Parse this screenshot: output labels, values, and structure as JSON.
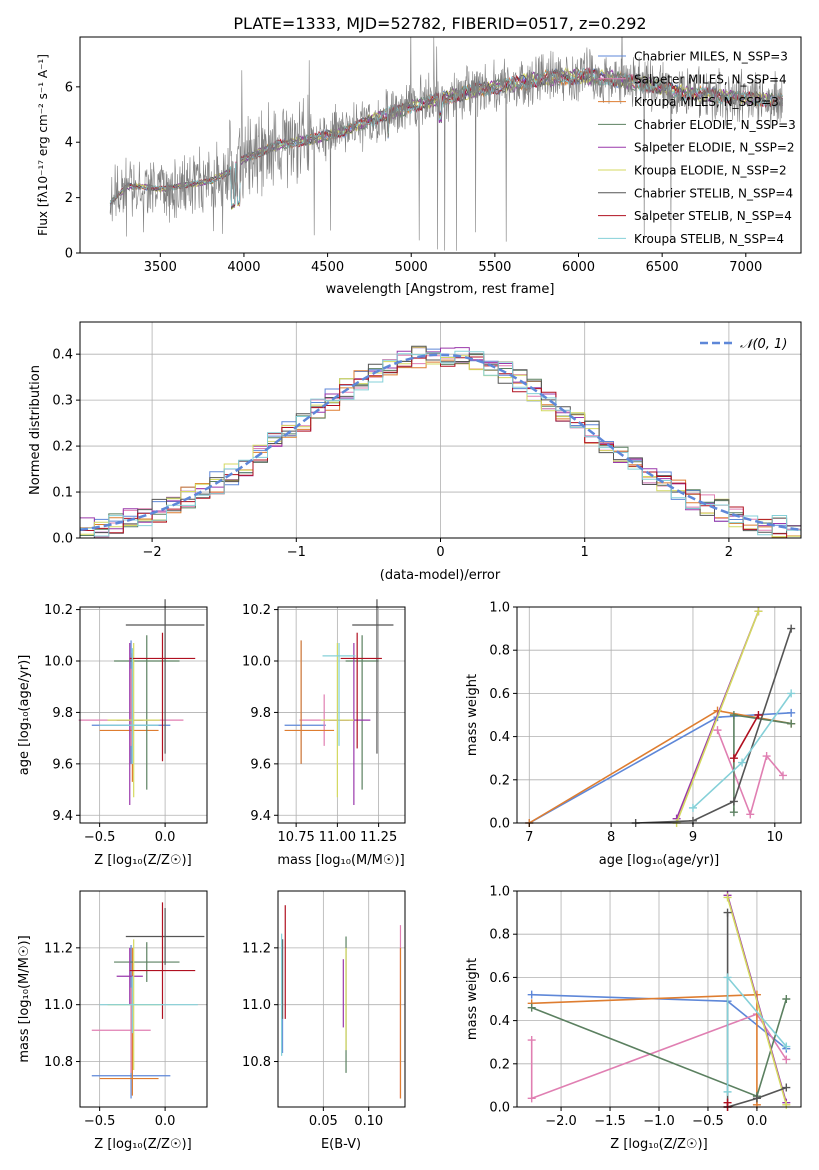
{
  "title": "PLATE=1333, MJD=52782, FIBERID=0517, z=0.292",
  "colors": {
    "palette": [
      "#5e87d8",
      "#e07fb2",
      "#de7d30",
      "#5b8060",
      "#9a38ab",
      "#d4d960",
      "#555555",
      "#b01020",
      "#85d0d8"
    ],
    "data": "#7f7f7f",
    "normal": "#5e87d8",
    "grid": "#b0b0b0"
  },
  "chart_data": [
    {
      "type": "line",
      "id": "spectrum",
      "xlabel": "wavelength [Angstrom, rest frame]",
      "ylabel": "Flux [fλ10⁻¹⁷ erg cm⁻² s⁻¹ A⁻¹]",
      "xlim": [
        3020,
        7330
      ],
      "ylim": [
        0,
        7.8
      ],
      "xticks": [
        3500,
        4000,
        4500,
        5000,
        5500,
        6000,
        6500,
        7000
      ],
      "yticks": [
        0,
        2,
        4,
        6
      ],
      "grid": false,
      "legend_position": "right",
      "series": [
        {
          "name": "Chabrier MILES, N_SSP=3"
        },
        {
          "name": "Salpeter MILES, N_SSP=4"
        },
        {
          "name": "Kroupa MILES, N_SSP=3"
        },
        {
          "name": "Chabrier ELODIE, N_SSP=3"
        },
        {
          "name": "Salpeter ELODIE, N_SSP=2"
        },
        {
          "name": "Kroupa ELODIE, N_SSP=2"
        },
        {
          "name": "Chabrier STELIB, N_SSP=4"
        },
        {
          "name": "Salpeter STELIB, N_SSP=4"
        },
        {
          "name": "Kroupa STELIB, N_SSP=4"
        }
      ],
      "continuum": {
        "x": [
          3200,
          3300,
          3400,
          3500,
          3600,
          3700,
          3800,
          3900,
          4000,
          4200,
          4400,
          4600,
          4800,
          5000,
          5200,
          5400,
          5600,
          5800,
          6000,
          6200,
          6400,
          6600,
          6800,
          7000,
          7200
        ],
        "y": [
          1.8,
          2.4,
          2.4,
          2.3,
          2.4,
          2.5,
          2.6,
          2.9,
          3.4,
          3.9,
          4.1,
          4.4,
          4.9,
          5.3,
          5.6,
          5.9,
          6.1,
          6.3,
          6.4,
          6.3,
          6.1,
          5.8,
          5.7,
          5.6,
          5.5
        ]
      }
    },
    {
      "type": "line",
      "id": "residuals",
      "xlabel": "(data-model)/error",
      "ylabel": "Normed distribution",
      "xlim": [
        -2.5,
        2.5
      ],
      "ylim": [
        0,
        0.47
      ],
      "xticks": [
        -2,
        -1,
        0,
        1,
        2
      ],
      "yticks": [
        0.0,
        0.1,
        0.2,
        0.3,
        0.4
      ],
      "grid": true,
      "legend_position": "top-right",
      "legend": [
        "𝒩(0, 1)"
      ],
      "bin_width": 0.1
    },
    {
      "type": "scatter",
      "id": "age-vs-Z",
      "xlabel": "Z [log₁₀(Z/Z☉)]",
      "ylabel": "age  [log₁₀(age/yr)]",
      "xlim": [
        -0.65,
        0.32
      ],
      "ylim": [
        9.37,
        10.21
      ],
      "xticks": [
        -0.5,
        0.0
      ],
      "yticks": [
        9.4,
        9.6,
        9.8,
        10.0,
        10.2
      ],
      "grid": true,
      "series": [
        {
          "x": -0.26,
          "xerr": [
            0.3,
            0.3
          ],
          "y": 9.75,
          "yerr": [
            0.15,
            0.33
          ]
        },
        {
          "x": -0.26,
          "xerr": [
            0.4,
            0.4
          ],
          "y": 9.77,
          "yerr": [
            0.1,
            0.2
          ]
        },
        {
          "x": -0.25,
          "xerr": [
            0.25,
            0.2
          ],
          "y": 9.73,
          "yerr": [
            0.2,
            0.3
          ]
        },
        {
          "x": -0.14,
          "xerr": [
            0.25,
            0.25
          ],
          "y": 10.0,
          "yerr": [
            0.5,
            0.1
          ]
        },
        {
          "x": -0.27,
          "xerr": [
            0.1,
            0.1
          ],
          "y": 9.77,
          "yerr": [
            0.33,
            0.3
          ]
        },
        {
          "x": -0.24,
          "xerr": [
            0.2,
            0.2
          ],
          "y": 9.77,
          "yerr": [
            0.3,
            0.3
          ]
        },
        {
          "x": 0.0,
          "xerr": [
            0.3,
            0.3
          ],
          "y": 10.14,
          "yerr": [
            0.5,
            0.1
          ]
        },
        {
          "x": -0.02,
          "xerr": [
            0.25,
            0.25
          ],
          "y": 10.01,
          "yerr": [
            0.4,
            0.1
          ]
        },
        {
          "x": -0.25,
          "xerr": [
            0.25,
            0.2
          ],
          "y": 9.75,
          "yerr": [
            0.15,
            0.3
          ]
        }
      ]
    },
    {
      "type": "scatter",
      "id": "age-vs-mass",
      "xlabel": "mass [log₁₀(M/M☉)]",
      "ylabel": "",
      "xlim": [
        10.64,
        11.41
      ],
      "ylim": [
        9.37,
        10.21
      ],
      "xticks": [
        10.75,
        11.0,
        11.25
      ],
      "yticks": [
        9.4,
        9.6,
        9.8,
        10.0,
        10.2
      ],
      "grid": true,
      "series": [
        {
          "x": 10.78,
          "xerr": [
            0.1,
            0.15
          ],
          "y": 9.75,
          "yerr": [
            0.15,
            0.33
          ]
        },
        {
          "x": 10.92,
          "xerr": [
            0.15,
            0.15
          ],
          "y": 9.77,
          "yerr": [
            0.1,
            0.1
          ]
        },
        {
          "x": 10.78,
          "xerr": [
            0.1,
            0.2
          ],
          "y": 9.73,
          "yerr": [
            0.13,
            0.35
          ]
        },
        {
          "x": 11.15,
          "xerr": [
            0.1,
            0.1
          ],
          "y": 10.0,
          "yerr": [
            0.5,
            0.1
          ]
        },
        {
          "x": 11.1,
          "xerr": [
            0.15,
            0.1
          ],
          "y": 9.77,
          "yerr": [
            0.33,
            0.3
          ]
        },
        {
          "x": 11.0,
          "xerr": [
            0.1,
            0.1
          ],
          "y": 9.77,
          "yerr": [
            0.3,
            0.3
          ]
        },
        {
          "x": 11.24,
          "xerr": [
            0.15,
            0.1
          ],
          "y": 10.14,
          "yerr": [
            0.5,
            0.1
          ]
        },
        {
          "x": 11.12,
          "xerr": [
            0.1,
            0.15
          ],
          "y": 10.01,
          "yerr": [
            0.35,
            0.1
          ]
        },
        {
          "x": 11.01,
          "xerr": [
            0.1,
            0.1
          ],
          "y": 10.02,
          "yerr": [
            0.35,
            0.05
          ]
        }
      ]
    },
    {
      "type": "line",
      "id": "mass-weight-vs-age",
      "xlabel": "age  [log₁₀(age/yr)]",
      "ylabel": "mass weight",
      "xlim": [
        6.85,
        10.32
      ],
      "ylim": [
        0,
        1
      ],
      "xticks": [
        7,
        8,
        9,
        10
      ],
      "yticks": [
        0.0,
        0.2,
        0.4,
        0.6,
        0.8,
        1.0
      ],
      "grid": true,
      "series": [
        {
          "x": [
            7.0,
            9.3,
            10.2
          ],
          "y": [
            0.0,
            0.49,
            0.51
          ]
        },
        {
          "x": [
            9.3,
            9.7,
            9.9,
            10.1
          ],
          "y": [
            0.43,
            0.04,
            0.31,
            0.22
          ]
        },
        {
          "x": [
            7.0,
            9.3,
            10.2
          ],
          "y": [
            0.0,
            0.52,
            0.46
          ]
        },
        {
          "x": [
            9.5,
            9.5,
            10.2
          ],
          "y": [
            0.05,
            0.5,
            0.46
          ]
        },
        {
          "x": [
            8.8,
            9.8
          ],
          "y": [
            0.02,
            0.98
          ]
        },
        {
          "x": [
            8.8,
            9.8
          ],
          "y": [
            0.0,
            0.98
          ]
        },
        {
          "x": [
            8.3,
            9.0,
            9.5,
            10.2
          ],
          "y": [
            0.0,
            0.01,
            0.1,
            0.9
          ]
        },
        {
          "x": [
            9.5,
            9.8
          ],
          "y": [
            0.3,
            0.5
          ]
        },
        {
          "x": [
            9.0,
            9.6,
            10.2
          ],
          "y": [
            0.07,
            0.28,
            0.6
          ]
        }
      ]
    },
    {
      "type": "scatter",
      "id": "mass-vs-Z",
      "xlabel": "Z [log₁₀(Z/Z☉)]",
      "ylabel": "mass [log₁₀(M/M☉)]",
      "xlim": [
        -0.65,
        0.32
      ],
      "ylim": [
        10.64,
        11.4
      ],
      "xticks": [
        -0.5,
        0.0
      ],
      "yticks": [
        10.8,
        11.0,
        11.2
      ],
      "grid": true,
      "series": [
        {
          "x": -0.26,
          "xerr": [
            0.3,
            0.3
          ],
          "y": 10.75,
          "yerr": [
            0.08,
            0.46
          ]
        },
        {
          "x": -0.26,
          "xerr": [
            0.3,
            0.15
          ],
          "y": 10.91,
          "yerr": [
            0.15,
            0.15
          ]
        },
        {
          "x": -0.25,
          "xerr": [
            0.25,
            0.2
          ],
          "y": 10.74,
          "yerr": [
            0.06,
            0.46
          ]
        },
        {
          "x": -0.14,
          "xerr": [
            0.25,
            0.25
          ],
          "y": 11.15,
          "yerr": [
            0.07,
            0.07
          ]
        },
        {
          "x": -0.27,
          "xerr": [
            0.1,
            0.1
          ],
          "y": 11.1,
          "yerr": [
            0.1,
            0.1
          ]
        },
        {
          "x": -0.24,
          "xerr": [
            0.2,
            0.2
          ],
          "y": 11.0,
          "yerr": [
            0.23,
            0.23
          ]
        },
        {
          "x": 0.0,
          "xerr": [
            0.3,
            0.3
          ],
          "y": 11.24,
          "yerr": [
            0.1,
            0.1
          ]
        },
        {
          "x": -0.02,
          "xerr": [
            0.25,
            0.25
          ],
          "y": 11.12,
          "yerr": [
            0.17,
            0.24
          ]
        },
        {
          "x": -0.25,
          "xerr": [
            0.25,
            0.5
          ],
          "y": 11.0,
          "yerr": [
            0.1,
            0.1
          ]
        }
      ]
    },
    {
      "type": "scatter",
      "id": "mass-vs-EBV",
      "xlabel": "E(B-V)",
      "ylabel": "",
      "xlim": [
        0.0,
        0.14
      ],
      "ylim": [
        10.64,
        11.4
      ],
      "xticks": [
        0.05,
        0.1
      ],
      "yticks": [
        10.8,
        11.0,
        11.2
      ],
      "grid": true,
      "series": [
        {
          "x": 0.005,
          "y": 11.05,
          "yerr": [
            0.22,
            0.18
          ]
        },
        {
          "x": 0.135,
          "y": 11.0,
          "yerr": [
            0.33,
            0.28
          ]
        },
        {
          "x": 0.135,
          "y": 10.95,
          "yerr": [
            0.28,
            0.25
          ]
        },
        {
          "x": 0.075,
          "y": 11.0,
          "yerr": [
            0.24,
            0.24
          ]
        },
        {
          "x": 0.072,
          "y": 11.04,
          "yerr": [
            0.12,
            0.12
          ]
        },
        {
          "x": 0.075,
          "y": 11.0,
          "yerr": [
            0.16,
            0.2
          ]
        },
        {
          "x": 0.005,
          "y": 11.1,
          "yerr": [
            0.15,
            0.13
          ]
        },
        {
          "x": 0.008,
          "y": 11.15,
          "yerr": [
            0.2,
            0.2
          ]
        },
        {
          "x": 0.004,
          "y": 11.0,
          "yerr": [
            0.18,
            0.25
          ]
        }
      ]
    },
    {
      "type": "line",
      "id": "mass-weight-vs-Z",
      "xlabel": "Z [log₁₀(Z/Z☉)]",
      "ylabel": "mass weight",
      "xlim": [
        -2.45,
        0.45
      ],
      "ylim": [
        0,
        1
      ],
      "xticks": [
        -2.0,
        -1.5,
        -1.0,
        -0.5,
        0.0
      ],
      "yticks": [
        0.0,
        0.2,
        0.4,
        0.6,
        0.8,
        1.0
      ],
      "grid": true,
      "series": [
        {
          "x": [
            -2.3,
            -0.3,
            0.3
          ],
          "y": [
            0.52,
            0.49,
            0.27
          ]
        },
        {
          "x": [
            -2.3,
            -2.3,
            0.0,
            0.3
          ],
          "y": [
            0.31,
            0.04,
            0.43,
            0.22
          ]
        },
        {
          "x": [
            -2.3,
            0.0,
            0.0
          ],
          "y": [
            0.48,
            0.52,
            0.01
          ]
        },
        {
          "x": [
            -2.3,
            0.0,
            0.3
          ],
          "y": [
            0.46,
            0.05,
            0.5
          ]
        },
        {
          "x": [
            -0.3,
            0.3
          ],
          "y": [
            0.98,
            0.02
          ]
        },
        {
          "x": [
            -0.3,
            0.3
          ],
          "y": [
            0.97,
            0.01
          ]
        },
        {
          "x": [
            -0.3,
            -0.3,
            0.0,
            0.3
          ],
          "y": [
            0.9,
            0.0,
            0.04,
            0.09
          ]
        },
        {
          "x": [
            -0.3,
            -0.3
          ],
          "y": [
            0.0,
            0.02
          ]
        },
        {
          "x": [
            -0.3,
            -0.3,
            0.3
          ],
          "y": [
            0.07,
            0.6,
            0.28
          ]
        }
      ]
    }
  ]
}
